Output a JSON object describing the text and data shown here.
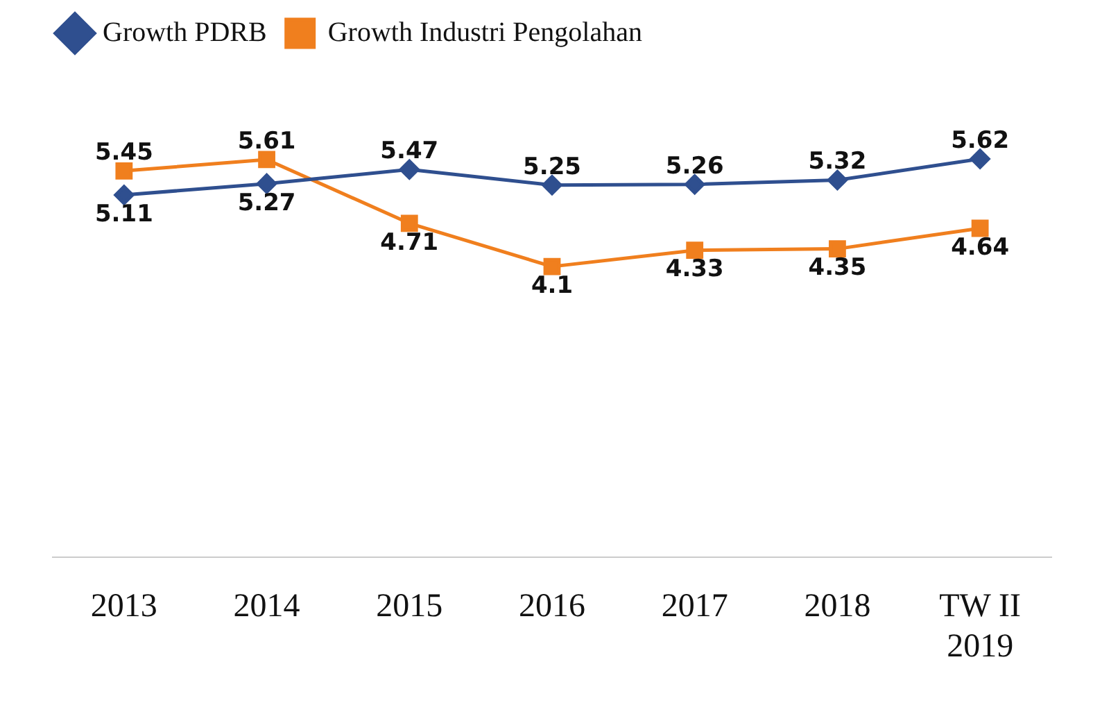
{
  "chart_data": {
    "type": "line",
    "categories": [
      "2013",
      "2014",
      "2015",
      "2016",
      "2017",
      "2018",
      "TW II 2019"
    ],
    "series": [
      {
        "name": "Growth PDRB",
        "color": "#2f4f8f",
        "marker": "diamond",
        "values": [
          5.11,
          5.27,
          5.47,
          5.25,
          5.26,
          5.32,
          5.62
        ]
      },
      {
        "name": "Growth Industri Pengolahan",
        "color": "#f07f1e",
        "marker": "square",
        "values": [
          5.45,
          5.61,
          4.71,
          4.1,
          4.33,
          4.35,
          4.64
        ]
      }
    ],
    "data_labels": true,
    "legend": "top left",
    "grid": false,
    "tick_labels": "x"
  }
}
